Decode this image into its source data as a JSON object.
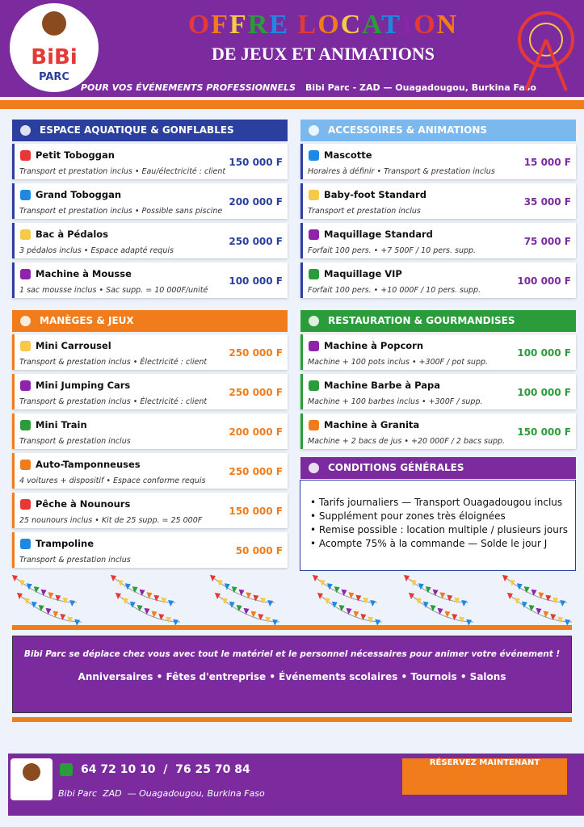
{
  "header": {
    "title": "OFFRE LOCATION",
    "subtitle": "DE JEUX ET ANIMATIONS",
    "tagline": "POUR VOS ÉVÉNEMENTS PROFESSIONNELS",
    "location": "Bibi Parc - ZAD — Ouagadougou, Burkina Faso",
    "logo": {
      "name": "BiBi",
      "sub": "PARC"
    }
  },
  "sections": [
    {
      "title": "ESPACE AQUATIQUE & GONFLABLES",
      "items": [
        {
          "name": "Petit Toboggan",
          "desc": "Transport et prestation inclus • Eau/électricité : client",
          "price": "150 000 F"
        },
        {
          "name": "Grand Toboggan",
          "desc": "Transport et prestation inclus • Possible sans piscine",
          "price": "200 000 F"
        },
        {
          "name": "Bac à Pédalos",
          "desc": "3 pédalos inclus • Espace adapté requis",
          "price": "250 000 F"
        },
        {
          "name": "Machine à Mousse",
          "desc": "1 sac mousse inclus • Sac supp. = 10 000F/unité",
          "price": "100 000 F"
        }
      ]
    },
    {
      "title": "ACCESSOIRES & ANIMATIONS",
      "items": [
        {
          "name": "Mascotte",
          "desc": "Horaires à définir • Transport & prestation inclus",
          "price": "15 000 F"
        },
        {
          "name": "Baby-foot Standard",
          "desc": "Transport et prestation inclus",
          "price": "35 000 F"
        },
        {
          "name": "Maquillage Standard",
          "desc": "Forfait 100 pers. • +7 500F / 10 pers. supp.",
          "price": "75 000 F"
        },
        {
          "name": "Maquillage VIP",
          "desc": "Forfait 100 pers. • +10 000F / 10 pers. supp.",
          "price": "100 000 F"
        }
      ]
    },
    {
      "title": "MANÈGES & JEUX",
      "items": [
        {
          "name": "Mini Carrousel",
          "desc": "Transport & prestation inclus • Électricité : client",
          "price": "250 000 F"
        },
        {
          "name": "Mini Jumping Cars",
          "desc": "Transport & prestation inclus • Électricité : client",
          "price": "250 000 F"
        },
        {
          "name": "Mini Train",
          "desc": "Transport & prestation inclus",
          "price": "200 000 F"
        },
        {
          "name": "Auto-Tamponneuses",
          "desc": "4 voitures + dispositif • Espace conforme requis",
          "price": "250 000 F"
        },
        {
          "name": "Pêche à Nounours",
          "desc": "25 nounours inclus • Kit de 25 supp. = 25 000F",
          "price": "150 000 F"
        },
        {
          "name": "Trampoline",
          "desc": "Transport & prestation inclus",
          "price": "50 000 F"
        }
      ]
    },
    {
      "title": "RESTAURATION & GOURMANDISES",
      "items": [
        {
          "name": "Machine à Popcorn",
          "desc": "Machine + 100 pots inclus • +300F / pot supp.",
          "price": "100 000 F"
        },
        {
          "name": "Machine Barbe à Papa",
          "desc": "Machine + 100 barbes inclus • +300F / supp.",
          "price": "100 000 F"
        },
        {
          "name": "Machine à Granita",
          "desc": "Machine + 2 bacs de jus • +20 000F / 2 bacs supp.",
          "price": "150 000 F"
        }
      ]
    }
  ],
  "conditions": {
    "title": "CONDITIONS GÉNÉRALES",
    "items": [
      "Tarifs journaliers — Transport Ouagadougou inclus",
      "Supplément pour zones très éloignées",
      "Remise possible : location multiple / plusieurs jours",
      "Acompte 75% à la commande — Solde le jour J"
    ]
  },
  "banner": {
    "text": "Bibi Parc se déplace chez vous avec tout le matériel et le personnel nécessaires pour animer votre événement !",
    "events": "Anniversaires • Fêtes d'entreprise • Événements scolaires • Tournois • Salons"
  },
  "footer": {
    "phone": "64 72 10 10  /  76 25 70 84",
    "address": "Bibi Parc  ZAD  — Ouagadougou, Burkina Faso",
    "button": "RÉSERVEZ MAINTENANT"
  }
}
